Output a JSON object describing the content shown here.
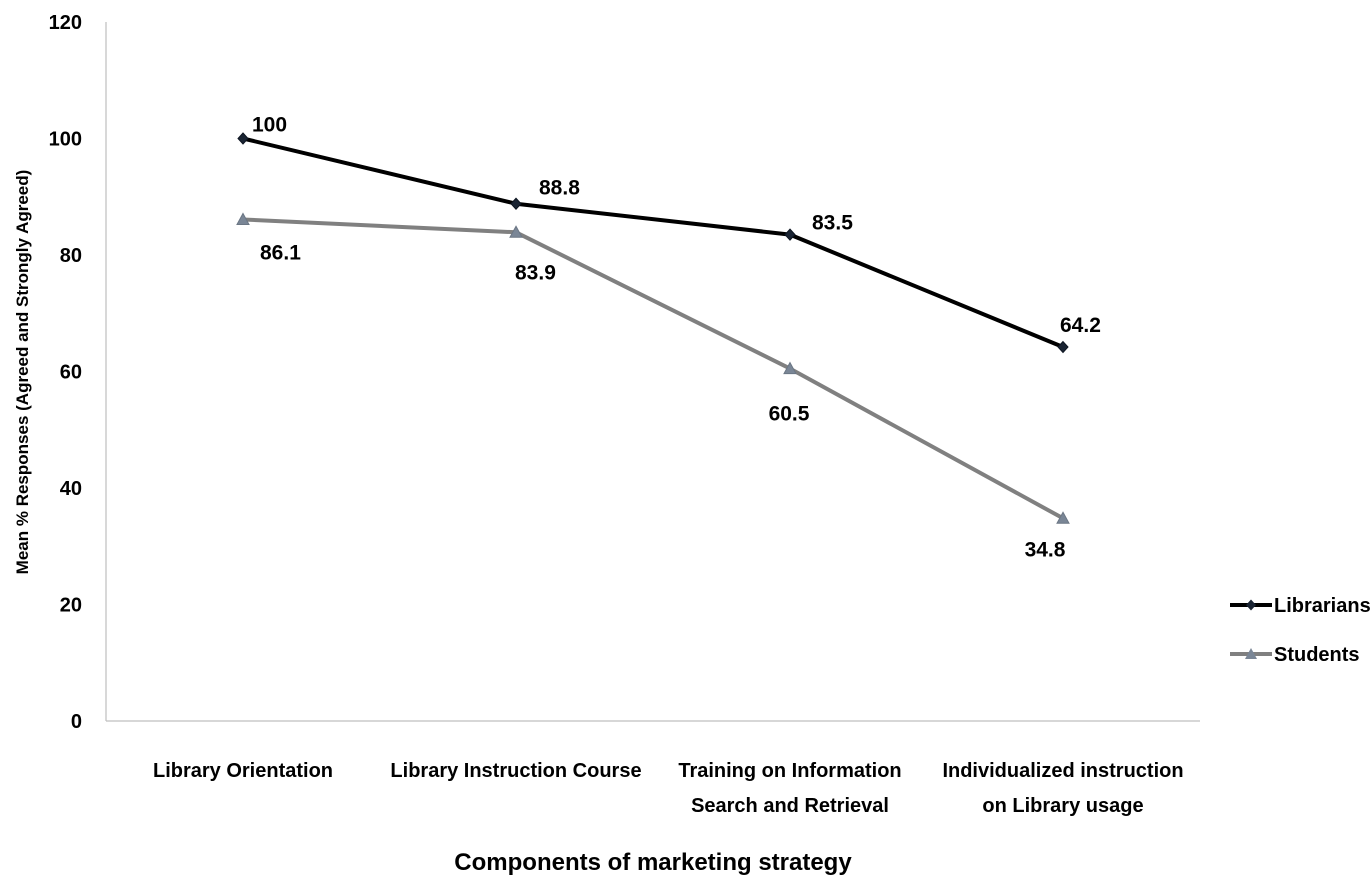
{
  "chart_data": {
    "type": "line",
    "title": "",
    "xlabel": "Components of marketing strategy",
    "ylabel": "Mean % Responses (Agreed and Strongly Agreed)",
    "ylim": [
      0,
      120
    ],
    "yticks": [
      0,
      20,
      40,
      60,
      80,
      100,
      120
    ],
    "categories": [
      [
        "Library Orientation"
      ],
      [
        "Library Instruction Course"
      ],
      [
        "Training on Information",
        "Search and Retrieval"
      ],
      [
        "Individualized instruction",
        "on Library usage"
      ]
    ],
    "series": [
      {
        "name": "Librarians",
        "values": [
          100,
          88.8,
          83.5,
          64.2
        ],
        "labels": [
          "100",
          "88.8",
          "83.5",
          "64.2"
        ],
        "color": "#000000",
        "marker": "diamond",
        "label_position": "above"
      },
      {
        "name": "Students",
        "values": [
          86.1,
          83.9,
          60.5,
          34.8
        ],
        "labels": [
          "86.1",
          "83.9",
          "60.5",
          "34.8"
        ],
        "color": "#808080",
        "marker": "triangle",
        "label_position": "below"
      }
    ],
    "grid": false,
    "legend": "right"
  }
}
